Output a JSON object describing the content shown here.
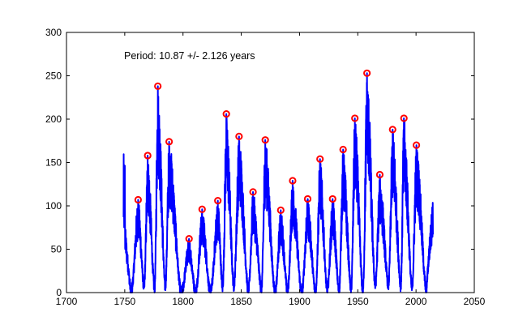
{
  "chart_data": {
    "type": "line",
    "title": "",
    "xlabel": "",
    "ylabel": "",
    "xlim": [
      1700,
      2050
    ],
    "ylim": [
      0,
      300
    ],
    "x_ticks": [
      1700,
      1750,
      1800,
      1850,
      1900,
      1950,
      2000,
      2050
    ],
    "y_ticks": [
      0,
      50,
      100,
      150,
      200,
      250,
      300
    ],
    "x_tick_labels": [
      "1700",
      "1750",
      "1800",
      "1850",
      "1900",
      "1950",
      "2000",
      "2050"
    ],
    "y_tick_labels": [
      "0",
      "50",
      "100",
      "150",
      "200",
      "250",
      "300"
    ],
    "grid": false,
    "annotation": "Period: 10.87 +/- 2.126 years",
    "colors": {
      "line": "#0000ff",
      "peak_marker": "#ff0000",
      "axes": "#000000",
      "background": "#ffffff"
    },
    "series": [
      {
        "type": "line",
        "minima": [
          [
            1755.2,
            0
          ],
          [
            1766.5,
            6
          ],
          [
            1775.5,
            4
          ],
          [
            1784.7,
            7
          ],
          [
            1798.3,
            0
          ],
          [
            1810.6,
            0
          ],
          [
            1823.3,
            0
          ],
          [
            1833.9,
            6
          ],
          [
            1843.5,
            8
          ],
          [
            1856.0,
            2
          ],
          [
            1867.2,
            4
          ],
          [
            1878.9,
            0
          ],
          [
            1889.6,
            1
          ],
          [
            1901.7,
            0
          ],
          [
            1913.6,
            0
          ],
          [
            1923.6,
            3
          ],
          [
            1933.8,
            2
          ],
          [
            1944.2,
            4
          ],
          [
            1954.3,
            1
          ],
          [
            1964.9,
            8
          ],
          [
            1976.2,
            9
          ],
          [
            1986.8,
            8
          ],
          [
            1996.4,
            5
          ],
          [
            2008.9,
            0
          ]
        ],
        "end": [
          2014.5,
          90
        ]
      },
      {
        "type": "scatter",
        "marker": "circle",
        "points": [
          [
            1761.5,
            107
          ],
          [
            1769.7,
            158
          ],
          [
            1778.4,
            238
          ],
          [
            1788.1,
            174
          ],
          [
            1805.2,
            62
          ],
          [
            1816.4,
            96
          ],
          [
            1829.9,
            106
          ],
          [
            1837.2,
            206
          ],
          [
            1848.1,
            180
          ],
          [
            1860.1,
            116
          ],
          [
            1870.6,
            176
          ],
          [
            1883.9,
            95
          ],
          [
            1894.1,
            129
          ],
          [
            1907.0,
            108
          ],
          [
            1917.6,
            154
          ],
          [
            1928.4,
            108
          ],
          [
            1937.4,
            165
          ],
          [
            1947.5,
            201
          ],
          [
            1957.9,
            253
          ],
          [
            1968.9,
            136
          ],
          [
            1979.9,
            188
          ],
          [
            1989.6,
            201
          ],
          [
            2000.3,
            170
          ]
        ]
      }
    ]
  }
}
